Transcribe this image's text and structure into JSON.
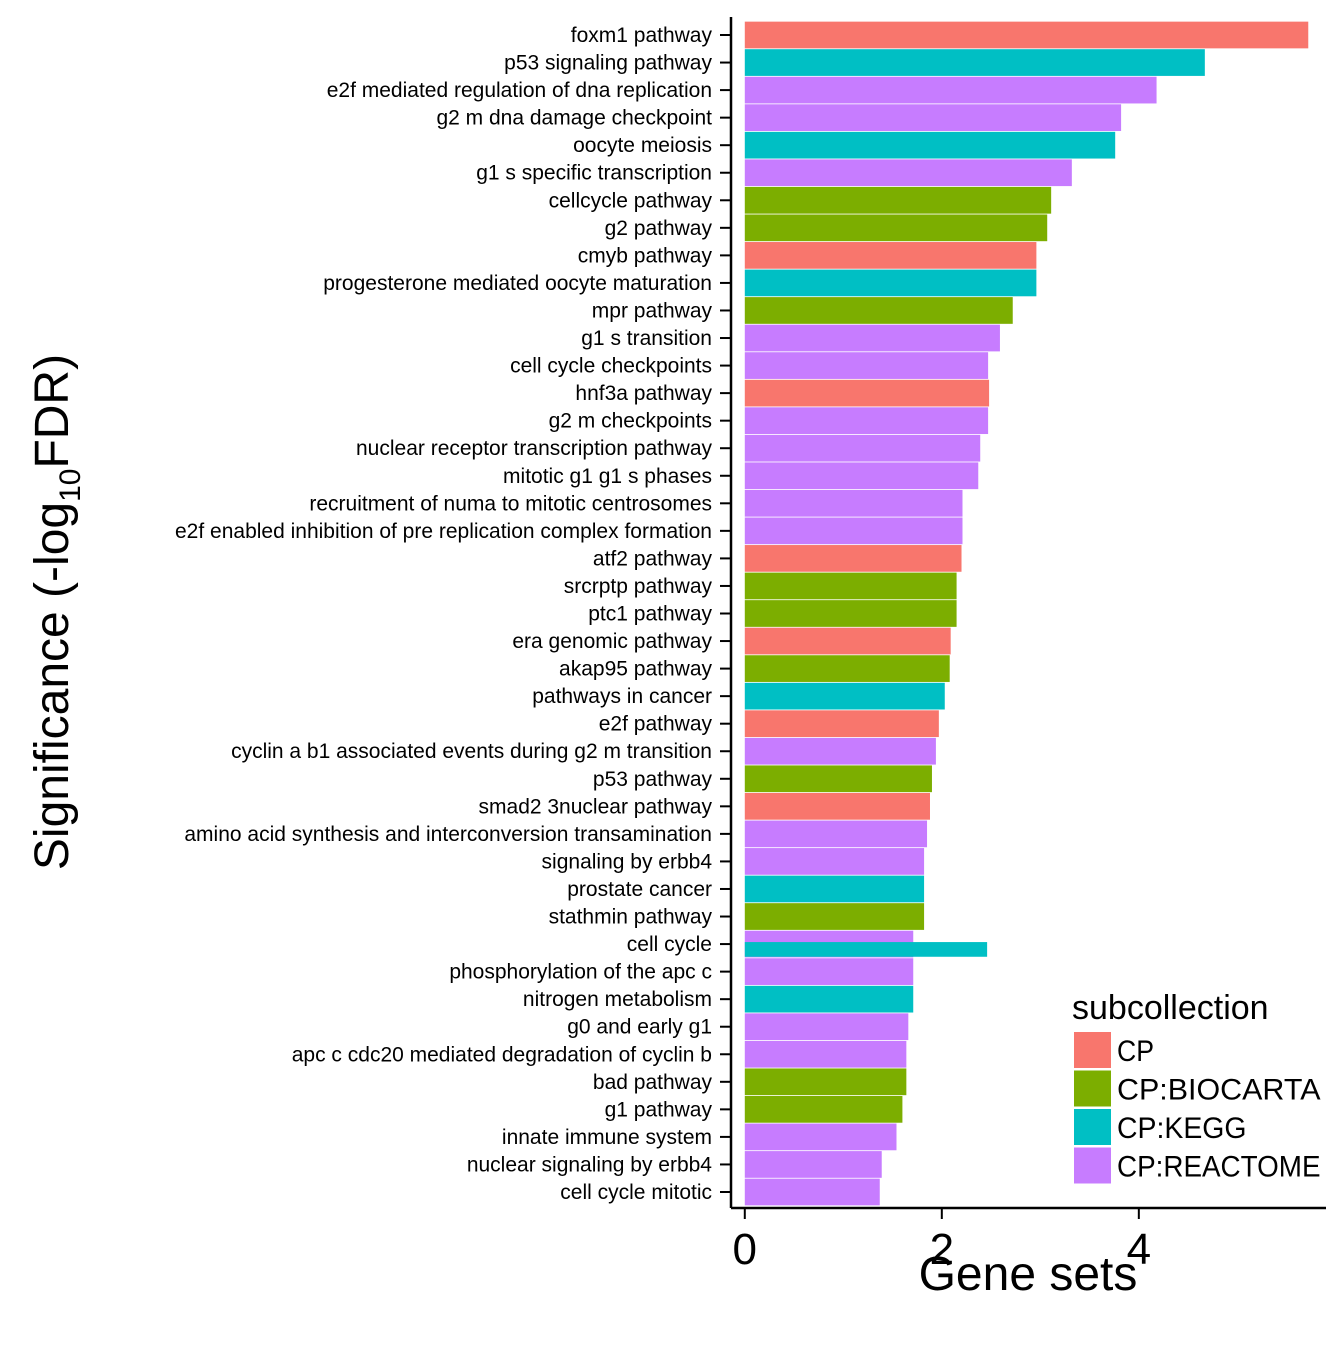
{
  "chart_data": {
    "type": "bar",
    "orientation": "horizontal",
    "xlabel": "Gene sets",
    "ylabel": "Significance (-log10FDR)",
    "ylabel_parts": {
      "prefix": "Significance (-log",
      "subscript": "10",
      "suffix": "FDR)"
    },
    "xlim": [
      -0.14,
      5.9
    ],
    "x_ticks": [
      0,
      2,
      4
    ],
    "grid": false,
    "legend": {
      "title": "subcollection",
      "placement": "bottom-right",
      "entries": [
        {
          "name": "CP",
          "color": "#F8766D"
        },
        {
          "name": "CP:BIOCARTA",
          "color": "#7CAE00"
        },
        {
          "name": "CP:KEGG",
          "color": "#00BFC4"
        },
        {
          "name": "CP:REACTOME",
          "color": "#C77CFF"
        }
      ]
    },
    "categories": [
      "foxm1 pathway",
      "p53 signaling pathway",
      "e2f mediated regulation of dna replication",
      "g2 m dna damage checkpoint",
      "oocyte meiosis",
      "g1 s specific transcription",
      "cellcycle pathway",
      "g2 pathway",
      "cmyb pathway",
      "progesterone mediated oocyte maturation",
      "mpr pathway",
      "g1 s transition",
      "cell cycle checkpoints",
      "hnf3a pathway",
      "g2 m checkpoints",
      "nuclear receptor transcription pathway",
      "mitotic g1 g1 s phases",
      "recruitment of numa to mitotic centrosomes",
      "e2f enabled inhibition of pre replication complex formation",
      "atf2 pathway",
      "srcrptp pathway",
      "ptc1 pathway",
      "era genomic pathway",
      "akap95 pathway",
      "pathways in cancer",
      "e2f pathway",
      "cyclin a b1 associated events during g2 m transition",
      "p53 pathway",
      "smad2 3nuclear pathway",
      "amino acid synthesis and interconversion transamination",
      "signaling by erbb4",
      "prostate cancer",
      "stathmin pathway",
      "cell cycle",
      "phosphorylation of the apc c",
      "nitrogen metabolism",
      "g0 and early g1",
      "apc c cdc20 mediated degradation of cyclin b",
      "bad pathway",
      "g1 pathway",
      "innate immune system",
      "nuclear signaling by erbb4",
      "cell cycle mitotic"
    ],
    "values": [
      5.72,
      4.67,
      4.18,
      3.82,
      3.76,
      3.32,
      3.11,
      3.07,
      2.96,
      2.96,
      2.72,
      2.59,
      2.47,
      2.48,
      2.47,
      2.39,
      2.37,
      2.21,
      2.21,
      2.2,
      2.15,
      2.15,
      2.09,
      2.08,
      2.03,
      1.97,
      1.94,
      1.9,
      1.88,
      1.85,
      1.82,
      1.82,
      1.82,
      1.71,
      1.71,
      1.71,
      1.66,
      1.64,
      1.64,
      1.6,
      1.54,
      1.39,
      1.37
    ],
    "subcollections": [
      "CP",
      "CP:KEGG",
      "CP:REACTOME",
      "CP:REACTOME",
      "CP:KEGG",
      "CP:REACTOME",
      "CP:BIOCARTA",
      "CP:BIOCARTA",
      "CP",
      "CP:KEGG",
      "CP:BIOCARTA",
      "CP:REACTOME",
      "CP:REACTOME",
      "CP",
      "CP:REACTOME",
      "CP:REACTOME",
      "CP:REACTOME",
      "CP:REACTOME",
      "CP:REACTOME",
      "CP",
      "CP:BIOCARTA",
      "CP:BIOCARTA",
      "CP",
      "CP:BIOCARTA",
      "CP:KEGG",
      "CP",
      "CP:REACTOME",
      "CP:BIOCARTA",
      "CP",
      "CP:REACTOME",
      "CP:REACTOME",
      "CP:KEGG",
      "CP:BIOCARTA",
      "CP:REACTOME",
      "CP:REACTOME",
      "CP:KEGG",
      "CP:REACTOME",
      "CP:REACTOME",
      "CP:BIOCARTA",
      "CP:BIOCARTA",
      "CP:REACTOME",
      "CP:REACTOME",
      "CP:REACTOME"
    ],
    "overlays": [
      {
        "category": "cell cycle",
        "value": 2.46,
        "subcollection": "CP:KEGG"
      }
    ]
  }
}
